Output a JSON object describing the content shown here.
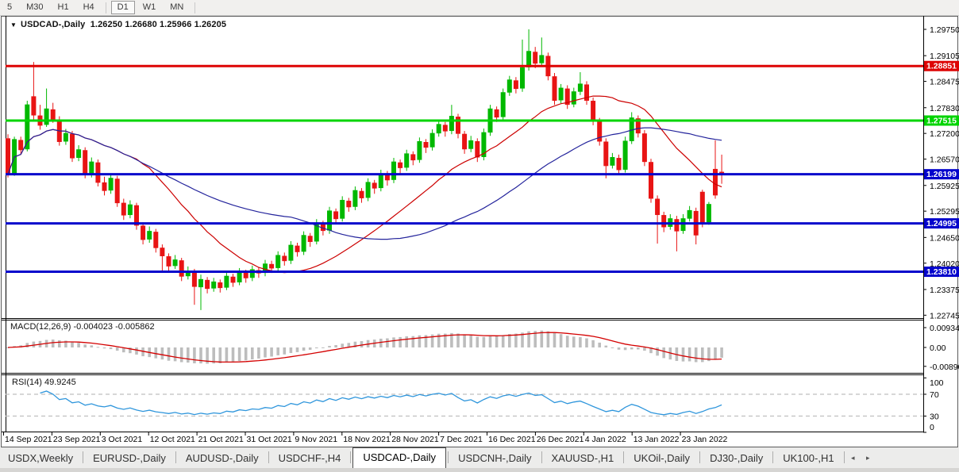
{
  "toolbar": {
    "timeframes": [
      "5",
      "M30",
      "H1",
      "H4",
      "D1",
      "W1",
      "MN"
    ],
    "active": "D1"
  },
  "chart": {
    "title_symbol": "USDCAD-,Daily",
    "title_ohlc": "1.26250 1.26680 1.25966 1.26205",
    "price_axis_ticks": [
      "1.29750",
      "1.29105",
      "1.28475",
      "1.27830",
      "1.27200",
      "1.26570",
      "1.25925",
      "1.25295",
      "1.24650",
      "1.24020",
      "1.23375",
      "1.22745"
    ],
    "hlines": [
      {
        "label": "1.28851",
        "price": 1.28851,
        "color": "#dd0404"
      },
      {
        "label": "1.27515",
        "price": 1.27515,
        "color": "#00d400"
      },
      {
        "label": "1.26199",
        "price": 1.26199,
        "color": "#0404cc"
      },
      {
        "label": "1.24995",
        "price": 1.24995,
        "color": "#0404cc"
      },
      {
        "label": "1.23810",
        "price": 1.2381,
        "color": "#0404cc"
      }
    ],
    "dates": [
      "14 Sep 2021",
      "23 Sep 2021",
      "3 Oct 2021",
      "12 Oct 2021",
      "21 Oct 2021",
      "31 Oct 2021",
      "9 Nov 2021",
      "18 Nov 2021",
      "28 Nov 2021",
      "7 Dec 2021",
      "16 Dec 2021",
      "26 Dec 2021",
      "4 Jan 2022",
      "13 Jan 2022",
      "23 Jan 2022"
    ],
    "colors": {
      "up": "#00b800",
      "down": "#e81414",
      "ma_fast": "#cc0000",
      "ma_slow": "#24249c",
      "macd_hist": "#bdbdbd",
      "macd_signal": "#d40000",
      "rsi_line": "#2f96dc",
      "level_dash": "#bfbfbf"
    }
  },
  "chart_data": {
    "type": "candlestick",
    "symbol": "USDCAD",
    "timeframe": "Daily",
    "x_range": [
      "14 Sep 2021",
      "24 Jan 2022"
    ],
    "y_range": [
      1.2287,
      1.2975
    ],
    "overlays": [
      {
        "name": "ma-fast",
        "period": 20
      },
      {
        "name": "ma-slow",
        "period": 45
      }
    ],
    "ohlc": [
      [
        1.2707,
        1.2718,
        1.2612,
        1.262
      ],
      [
        1.2622,
        1.2712,
        1.2616,
        1.2705
      ],
      [
        1.2703,
        1.2712,
        1.2668,
        1.268
      ],
      [
        1.2682,
        1.28,
        1.2676,
        1.279
      ],
      [
        1.281,
        1.2895,
        1.2752,
        1.2765
      ],
      [
        1.2763,
        1.279,
        1.2729,
        1.274
      ],
      [
        1.2742,
        1.283,
        1.2736,
        1.278
      ],
      [
        1.2778,
        1.2795,
        1.2746,
        1.2755
      ],
      [
        1.2753,
        1.2762,
        1.269,
        1.27
      ],
      [
        1.2701,
        1.2731,
        1.2692,
        1.272
      ],
      [
        1.2718,
        1.2726,
        1.265,
        1.266
      ],
      [
        1.2661,
        1.2691,
        1.2652,
        1.268
      ],
      [
        1.2678,
        1.2686,
        1.261,
        1.262
      ],
      [
        1.2621,
        1.2661,
        1.2612,
        1.265
      ],
      [
        1.2648,
        1.2656,
        1.259,
        1.26
      ],
      [
        1.2599,
        1.2614,
        1.2568,
        1.258
      ],
      [
        1.2581,
        1.262,
        1.2572,
        1.261
      ],
      [
        1.2608,
        1.2616,
        1.254,
        1.255
      ],
      [
        1.2549,
        1.256,
        1.2508,
        1.252
      ],
      [
        1.2521,
        1.2556,
        1.2512,
        1.2545
      ],
      [
        1.2543,
        1.255,
        1.2484,
        1.2495
      ],
      [
        1.2493,
        1.2502,
        1.2448,
        1.246
      ],
      [
        1.2461,
        1.2492,
        1.2452,
        1.248
      ],
      [
        1.2478,
        1.2486,
        1.2428,
        1.244
      ],
      [
        1.2439,
        1.2448,
        1.238,
        1.242
      ],
      [
        1.2418,
        1.2426,
        1.2384,
        1.2395
      ],
      [
        1.2396,
        1.2422,
        1.2388,
        1.241
      ],
      [
        1.2408,
        1.2415,
        1.2358,
        1.237
      ],
      [
        1.2371,
        1.2394,
        1.2362,
        1.2382
      ],
      [
        1.238,
        1.2388,
        1.23,
        1.2345
      ],
      [
        1.2344,
        1.2374,
        1.2287,
        1.2362
      ],
      [
        1.236,
        1.2368,
        1.2328,
        1.234
      ],
      [
        1.2341,
        1.2366,
        1.2332,
        1.2356
      ],
      [
        1.2354,
        1.2362,
        1.233,
        1.2342
      ],
      [
        1.2343,
        1.238,
        1.2336,
        1.237
      ],
      [
        1.2368,
        1.2376,
        1.2344,
        1.2355
      ],
      [
        1.2356,
        1.239,
        1.2348,
        1.238
      ],
      [
        1.2379,
        1.2386,
        1.2354,
        1.2366
      ],
      [
        1.2367,
        1.2396,
        1.2358,
        1.2386
      ],
      [
        1.2384,
        1.2392,
        1.2366,
        1.2378
      ],
      [
        1.2379,
        1.241,
        1.237,
        1.24
      ],
      [
        1.2399,
        1.2408,
        1.2378,
        1.239
      ],
      [
        1.2391,
        1.2431,
        1.2383,
        1.2421
      ],
      [
        1.2419,
        1.2428,
        1.2396,
        1.2408
      ],
      [
        1.2409,
        1.2456,
        1.24,
        1.2446
      ],
      [
        1.2444,
        1.2452,
        1.2418,
        1.243
      ],
      [
        1.2431,
        1.248,
        1.2422,
        1.247
      ],
      [
        1.2468,
        1.2476,
        1.2442,
        1.2455
      ],
      [
        1.2456,
        1.251,
        1.2448,
        1.25
      ],
      [
        1.2498,
        1.2506,
        1.247,
        1.2482
      ],
      [
        1.2483,
        1.254,
        1.2474,
        1.253
      ],
      [
        1.2528,
        1.2536,
        1.2498,
        1.2511
      ],
      [
        1.2512,
        1.2566,
        1.2504,
        1.2556
      ],
      [
        1.2554,
        1.2562,
        1.2528,
        1.254
      ],
      [
        1.2541,
        1.259,
        1.2532,
        1.258
      ],
      [
        1.2578,
        1.2586,
        1.255,
        1.2562
      ],
      [
        1.2563,
        1.261,
        1.2554,
        1.26
      ],
      [
        1.2598,
        1.2606,
        1.2572,
        1.2586
      ],
      [
        1.2587,
        1.2631,
        1.2578,
        1.2621
      ],
      [
        1.2619,
        1.2628,
        1.2592,
        1.2606
      ],
      [
        1.2607,
        1.266,
        1.2598,
        1.265
      ],
      [
        1.2648,
        1.2656,
        1.2622,
        1.2636
      ],
      [
        1.2637,
        1.268,
        1.2628,
        1.267
      ],
      [
        1.2668,
        1.2676,
        1.2642,
        1.2655
      ],
      [
        1.2656,
        1.271,
        1.2648,
        1.27
      ],
      [
        1.2698,
        1.2706,
        1.2672,
        1.2686
      ],
      [
        1.2687,
        1.273,
        1.2678,
        1.272
      ],
      [
        1.2721,
        1.2752,
        1.2712,
        1.2742
      ],
      [
        1.274,
        1.2748,
        1.2712,
        1.2726
      ],
      [
        1.2727,
        1.279,
        1.2718,
        1.2762
      ],
      [
        1.276,
        1.2768,
        1.2708,
        1.272
      ],
      [
        1.2718,
        1.2726,
        1.267,
        1.2682
      ],
      [
        1.2683,
        1.2714,
        1.2674,
        1.2702
      ],
      [
        1.27,
        1.2708,
        1.265,
        1.2662
      ],
      [
        1.2663,
        1.2732,
        1.2654,
        1.2722
      ],
      [
        1.2723,
        1.279,
        1.2714,
        1.278
      ],
      [
        1.2778,
        1.2786,
        1.2748,
        1.276
      ],
      [
        1.2761,
        1.283,
        1.2752,
        1.282
      ],
      [
        1.2821,
        1.2861,
        1.2812,
        1.2851
      ],
      [
        1.2849,
        1.2858,
        1.2818,
        1.283
      ],
      [
        1.2831,
        1.295,
        1.2822,
        1.2881
      ],
      [
        1.2883,
        1.2975,
        1.2874,
        1.2921
      ],
      [
        1.2919,
        1.2932,
        1.288,
        1.2892
      ],
      [
        1.2893,
        1.2955,
        1.2884,
        1.2911
      ],
      [
        1.2909,
        1.2918,
        1.285,
        1.2861
      ],
      [
        1.2859,
        1.2868,
        1.279,
        1.2801
      ],
      [
        1.2802,
        1.2841,
        1.2794,
        1.2831
      ],
      [
        1.2829,
        1.2838,
        1.278,
        1.2791
      ],
      [
        1.2792,
        1.2832,
        1.2784,
        1.2822
      ],
      [
        1.2823,
        1.287,
        1.2814,
        1.2841
      ],
      [
        1.2839,
        1.2848,
        1.279,
        1.2801
      ],
      [
        1.2799,
        1.2808,
        1.274,
        1.2751
      ],
      [
        1.2749,
        1.2758,
        1.269,
        1.2701
      ],
      [
        1.2699,
        1.2708,
        1.261,
        1.2641
      ],
      [
        1.2642,
        1.2672,
        1.2634,
        1.2661
      ],
      [
        1.2659,
        1.2668,
        1.262,
        1.2631
      ],
      [
        1.2632,
        1.2712,
        1.2624,
        1.2701
      ],
      [
        1.2702,
        1.2772,
        1.2694,
        1.2758
      ],
      [
        1.2756,
        1.2764,
        1.271,
        1.2721
      ],
      [
        1.2719,
        1.2728,
        1.264,
        1.2651
      ],
      [
        1.2649,
        1.2658,
        1.255,
        1.2561
      ],
      [
        1.2559,
        1.2568,
        1.245,
        1.2521
      ],
      [
        1.2519,
        1.2528,
        1.2478,
        1.2491
      ],
      [
        1.2492,
        1.2522,
        1.2484,
        1.2511
      ],
      [
        1.2509,
        1.2518,
        1.2431,
        1.2481
      ],
      [
        1.2482,
        1.2522,
        1.2474,
        1.2511
      ],
      [
        1.2512,
        1.2542,
        1.2504,
        1.2531
      ],
      [
        1.2529,
        1.2538,
        1.2448,
        1.2471
      ],
      [
        1.2576,
        1.2582,
        1.249,
        1.2501
      ],
      [
        1.2503,
        1.2552,
        1.2496,
        1.2546
      ],
      [
        1.2632,
        1.2703,
        1.256,
        1.2569
      ],
      [
        1.2625,
        1.2668,
        1.25966,
        1.26205
      ]
    ]
  },
  "macd": {
    "label": "MACD(12,26,9) -0.004023 -0.005862",
    "fast": 12,
    "slow": 26,
    "signal": 9,
    "axis": [
      {
        "label": "0.009345",
        "value": 0.009345
      },
      {
        "label": "0.00",
        "value": 0.0
      },
      {
        "label": "-0.008902",
        "value": -0.008902
      }
    ]
  },
  "rsi": {
    "label": "RSI(14) 49.9245",
    "period": 14,
    "value": 49.9245,
    "axis": [
      {
        "label": "100",
        "value": 100
      },
      {
        "label": "70",
        "value": 70
      },
      {
        "label": "30",
        "value": 30
      },
      {
        "label": "0",
        "value": 0
      }
    ],
    "dashed_levels": [
      70,
      30
    ]
  },
  "tabs": {
    "items": [
      "USDX,Weekly",
      "EURUSD-,Daily",
      "AUDUSD-,Daily",
      "USDCHF-,H4",
      "USDCAD-,Daily",
      "USDCNH-,Daily",
      "XAUUSD-,H1",
      "UKOil-,Daily",
      "DJ30-,Daily",
      "UK100-,H1"
    ],
    "active": "USDCAD-,Daily",
    "scroll_arrows": "◂ ▸"
  }
}
